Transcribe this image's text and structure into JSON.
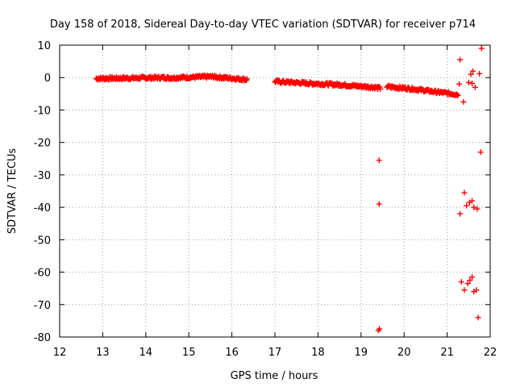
{
  "chart_data": {
    "type": "scatter",
    "title": "Day 158 of 2018, Sidereal Day-to-day VTEC variation (SDTVAR) for receiver p714",
    "xlabel": "GPS time / hours",
    "ylabel": "SDTVAR / TECUs",
    "xlim": [
      12,
      22
    ],
    "ylim": [
      -80,
      10
    ],
    "xticks": [
      "12",
      "13",
      "14",
      "15",
      "16",
      "17",
      "18",
      "19",
      "20",
      "21",
      "22"
    ],
    "yticks": [
      "10",
      "0",
      "-10",
      "-20",
      "-30",
      "-40",
      "-50",
      "-60",
      "-70",
      "-80"
    ],
    "grid": true,
    "marker": "+",
    "color": "#ff0000",
    "segments": [
      {
        "x_start": 12.85,
        "x_end": 14.5,
        "y_start": -0.3,
        "y_end": 0.0
      },
      {
        "x_start": 14.5,
        "x_end": 15.6,
        "y_start": -0.1,
        "y_end": 0.3
      },
      {
        "x_start": 15.6,
        "x_end": 16.35,
        "y_start": 0.2,
        "y_end": -0.6
      },
      {
        "x_start": 17.0,
        "x_end": 17.8,
        "y_start": -1.2,
        "y_end": -1.8
      },
      {
        "x_start": 17.8,
        "x_end": 18.5,
        "y_start": -1.8,
        "y_end": -2.2
      },
      {
        "x_start": 18.5,
        "x_end": 19.3,
        "y_start": -2.2,
        "y_end": -3.0
      },
      {
        "x_start": 19.3,
        "x_end": 19.45,
        "y_start": -3.0,
        "y_end": -3.3
      },
      {
        "x_start": 19.6,
        "x_end": 20.2,
        "y_start": -2.8,
        "y_end": -3.5
      },
      {
        "x_start": 20.2,
        "x_end": 20.8,
        "y_start": -3.5,
        "y_end": -4.5
      },
      {
        "x_start": 20.8,
        "x_end": 21.25,
        "y_start": -4.5,
        "y_end": -5.2
      }
    ],
    "points": [
      {
        "x": 19.42,
        "y": -25.5
      },
      {
        "x": 19.42,
        "y": -39.0
      },
      {
        "x": 19.43,
        "y": -77.5
      },
      {
        "x": 19.4,
        "y": -78.0
      },
      {
        "x": 21.3,
        "y": 5.5
      },
      {
        "x": 21.28,
        "y": -2.0
      },
      {
        "x": 21.38,
        "y": -7.5
      },
      {
        "x": 21.5,
        "y": -1.5
      },
      {
        "x": 21.55,
        "y": 1.0
      },
      {
        "x": 21.6,
        "y": 2.0
      },
      {
        "x": 21.58,
        "y": -1.8
      },
      {
        "x": 21.65,
        "y": -3.0
      },
      {
        "x": 21.75,
        "y": 1.2
      },
      {
        "x": 21.8,
        "y": 9.0
      },
      {
        "x": 21.78,
        "y": -23.0
      },
      {
        "x": 21.4,
        "y": -35.5
      },
      {
        "x": 21.45,
        "y": -39.5
      },
      {
        "x": 21.52,
        "y": -38.5
      },
      {
        "x": 21.58,
        "y": -38.0
      },
      {
        "x": 21.62,
        "y": -40.0
      },
      {
        "x": 21.7,
        "y": -40.5
      },
      {
        "x": 21.3,
        "y": -42.0
      },
      {
        "x": 21.33,
        "y": -63.0
      },
      {
        "x": 21.4,
        "y": -65.5
      },
      {
        "x": 21.48,
        "y": -63.5
      },
      {
        "x": 21.53,
        "y": -62.5
      },
      {
        "x": 21.58,
        "y": -61.5
      },
      {
        "x": 21.62,
        "y": -66.0
      },
      {
        "x": 21.68,
        "y": -65.5
      },
      {
        "x": 21.72,
        "y": -74.0
      }
    ]
  }
}
